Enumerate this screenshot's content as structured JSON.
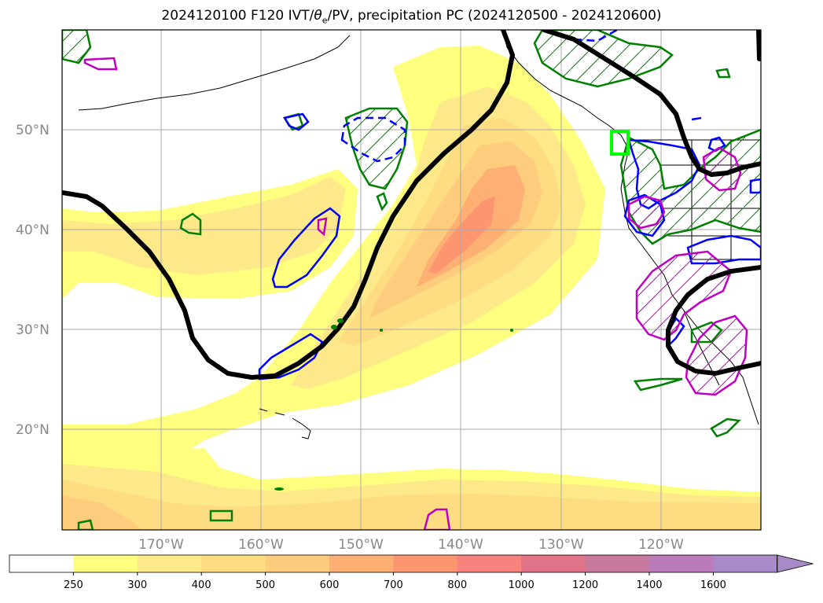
{
  "title_main": "2024120100 F120 IVT/",
  "title_theta": "θ",
  "title_theta_sub": "e",
  "title_rest": "/PV, precipitation PC (2024120500 - 2024120600)",
  "lat_labels": [
    {
      "label": "50°N",
      "value": 50
    },
    {
      "label": "40°N",
      "value": 40
    },
    {
      "label": "30°N",
      "value": 30
    },
    {
      "label": "20°N",
      "value": 20
    }
  ],
  "lon_labels": [
    {
      "label": "170°W",
      "value": -170
    },
    {
      "label": "160°W",
      "value": -160
    },
    {
      "label": "150°W",
      "value": -150
    },
    {
      "label": "140°W",
      "value": -140
    },
    {
      "label": "130°W",
      "value": -130
    },
    {
      "label": "120°W",
      "value": -120
    }
  ],
  "colorbar": {
    "levels": [
      "250",
      "300",
      "400",
      "500",
      "600",
      "700",
      "800",
      "1000",
      "1200",
      "1400",
      "1600"
    ],
    "colors": [
      "#ffffff",
      "#fefe7f",
      "#fde98a",
      "#fddc82",
      "#fdcc7c",
      "#fdaf74",
      "#fc9670",
      "#f7837c",
      "#e07387",
      "#c77a9e",
      "#bb7ab9",
      "#a98ac9"
    ],
    "extend": "max"
  },
  "colors": {
    "pv_line": "#000000",
    "theta_blue": "#0000ff",
    "precip_green": "#008000",
    "precip_magenta": "#c000c0",
    "box_highlight": "#00ff00"
  }
}
